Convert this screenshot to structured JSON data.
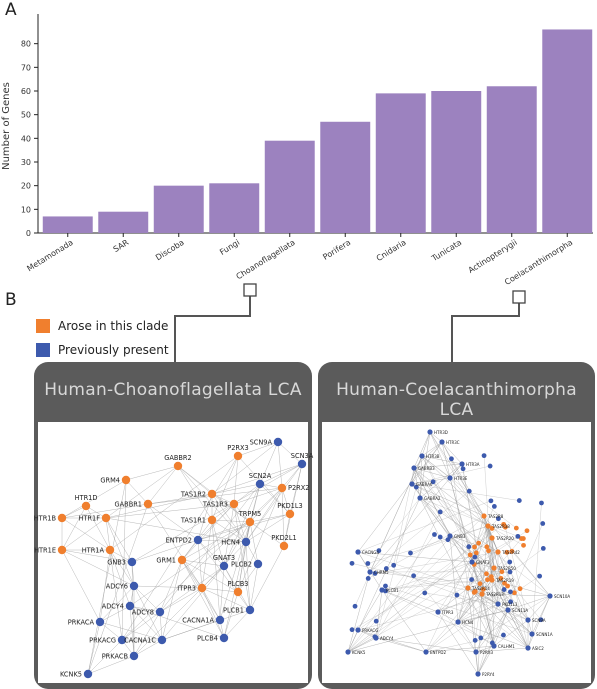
{
  "panel_a_letter": "A",
  "panel_b_letter": "B",
  "chart_data": {
    "type": "bar",
    "categories": [
      "Metamonada",
      "SAR",
      "Discoba",
      "Fungi",
      "Choanoflagellata",
      "Porifera",
      "Cnidaria",
      "Tunicata",
      "Actinopterygii",
      "Coelacanthimorpha"
    ],
    "values": [
      7,
      9,
      20,
      21,
      39,
      47,
      59,
      60,
      62,
      86
    ],
    "ylabel": "Number of Genes",
    "xlabel": "",
    "ylim": [
      0,
      90
    ],
    "yticks": [
      0,
      10,
      20,
      30,
      40,
      50,
      60,
      70,
      80
    ],
    "bar_color": "#9c82bf",
    "grid": false
  },
  "legend": {
    "items": [
      {
        "label": "Arose in this clade",
        "color": "#f07f2e"
      },
      {
        "label": "Previously present",
        "color": "#3d5aad"
      }
    ]
  },
  "network_left": {
    "title": "Human-Choanoflagellata LCA",
    "nodes": [
      {
        "id": "SCN9A",
        "clade": "old"
      },
      {
        "id": "SCN3A",
        "clade": "old"
      },
      {
        "id": "P2RX3",
        "clade": "new"
      },
      {
        "id": "P2RX2",
        "clade": "new"
      },
      {
        "id": "GABBR2",
        "clade": "new"
      },
      {
        "id": "GRM4",
        "clade": "new"
      },
      {
        "id": "SCN2A",
        "clade": "old"
      },
      {
        "id": "TAS1R2",
        "clade": "new"
      },
      {
        "id": "HTR1D",
        "clade": "new"
      },
      {
        "id": "GABBR1",
        "clade": "new"
      },
      {
        "id": "TAS1R3",
        "clade": "new"
      },
      {
        "id": "PKD1L3",
        "clade": "new"
      },
      {
        "id": "HTR1B",
        "clade": "new"
      },
      {
        "id": "HTR1F",
        "clade": "new"
      },
      {
        "id": "TAS1R1",
        "clade": "new"
      },
      {
        "id": "TRPM5",
        "clade": "new"
      },
      {
        "id": "ENTPD2",
        "clade": "old"
      },
      {
        "id": "HCN4",
        "clade": "old"
      },
      {
        "id": "PKD2L1",
        "clade": "new"
      },
      {
        "id": "HTR1E",
        "clade": "new"
      },
      {
        "id": "HTR1A",
        "clade": "new"
      },
      {
        "id": "GNB3",
        "clade": "old"
      },
      {
        "id": "GRM1",
        "clade": "new"
      },
      {
        "id": "GNAT3",
        "clade": "old"
      },
      {
        "id": "PLCB2",
        "clade": "old"
      },
      {
        "id": "ADCY6",
        "clade": "old"
      },
      {
        "id": "ITPR3",
        "clade": "new"
      },
      {
        "id": "PLCB3",
        "clade": "new"
      },
      {
        "id": "ADCY4",
        "clade": "old"
      },
      {
        "id": "ADCY8",
        "clade": "old"
      },
      {
        "id": "PLCB1",
        "clade": "old"
      },
      {
        "id": "PRKACA",
        "clade": "old"
      },
      {
        "id": "CACNA1A",
        "clade": "old"
      },
      {
        "id": "PLCB4",
        "clade": "old"
      },
      {
        "id": "PRKACG",
        "clade": "old"
      },
      {
        "id": "CACNA1C",
        "clade": "old"
      },
      {
        "id": "PRKACB",
        "clade": "old"
      },
      {
        "id": "KCNK5",
        "clade": "old"
      }
    ]
  },
  "network_right": {
    "title": "Human-Coelacanthimorpha LCA",
    "nodes": [
      {
        "id": "HTR3D",
        "clade": "old"
      },
      {
        "id": "HTR3C",
        "clade": "old"
      },
      {
        "id": "HTR3B",
        "clade": "old"
      },
      {
        "id": "HTR3A",
        "clade": "old"
      },
      {
        "id": "GABRB3",
        "clade": "old"
      },
      {
        "id": "HTR3E",
        "clade": "old"
      },
      {
        "id": "GABRA6",
        "clade": "old"
      },
      {
        "id": "GABRA2",
        "clade": "old"
      },
      {
        "id": "TAS2R8",
        "clade": "new"
      },
      {
        "id": "TAS2R38",
        "clade": "new"
      },
      {
        "id": "TAS2R20",
        "clade": "new"
      },
      {
        "id": "TAS2R42",
        "clade": "new"
      },
      {
        "id": "TAS2R50",
        "clade": "new"
      },
      {
        "id": "TAS2R19",
        "clade": "new"
      },
      {
        "id": "TAS2R13",
        "clade": "new"
      },
      {
        "id": "TAS2R14",
        "clade": "new"
      },
      {
        "id": "CACNG4",
        "clade": "old"
      },
      {
        "id": "CHRM5",
        "clade": "old"
      },
      {
        "id": "PLCB1",
        "clade": "old"
      },
      {
        "id": "PKD1L3",
        "clade": "old"
      },
      {
        "id": "SCN10A",
        "clade": "old"
      },
      {
        "id": "SCN11A",
        "clade": "old"
      },
      {
        "id": "SCN9A",
        "clade": "old"
      },
      {
        "id": "SCNN1A",
        "clade": "old"
      },
      {
        "id": "ASIC2",
        "clade": "old"
      },
      {
        "id": "CALHM1",
        "clade": "old"
      },
      {
        "id": "P2RX3",
        "clade": "old"
      },
      {
        "id": "P2RY4",
        "clade": "old"
      },
      {
        "id": "ENTPD2",
        "clade": "old"
      },
      {
        "id": "PRKACG",
        "clade": "old"
      },
      {
        "id": "ADCY4",
        "clade": "old"
      },
      {
        "id": "KCNK5",
        "clade": "old"
      },
      {
        "id": "ITPR3",
        "clade": "old"
      },
      {
        "id": "HCN4",
        "clade": "old"
      },
      {
        "id": "GNB3",
        "clade": "old"
      },
      {
        "id": "GNAT3",
        "clade": "old"
      }
    ]
  }
}
